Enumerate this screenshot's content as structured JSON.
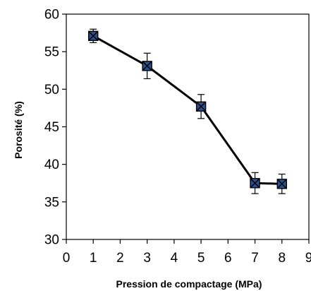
{
  "chart_data": {
    "type": "line",
    "title": "",
    "xlabel": "Pression de compactage (MPa)",
    "ylabel": "Porosité (%)",
    "xlim": [
      0,
      9
    ],
    "ylim": [
      30,
      60
    ],
    "x_ticks": [
      0,
      1,
      2,
      3,
      4,
      5,
      6,
      7,
      8,
      9
    ],
    "y_ticks": [
      30,
      35,
      40,
      45,
      50,
      55,
      60
    ],
    "grid": false,
    "legend": "none",
    "series": [
      {
        "x": [
          1,
          3,
          5,
          7,
          8
        ],
        "y": [
          57.1,
          53.1,
          47.7,
          37.5,
          37.4
        ],
        "error": [
          0.9,
          1.7,
          1.6,
          1.4,
          1.3
        ],
        "line_color": "#000000",
        "marker_fill": "#2f4f8c",
        "marker": "square-x"
      }
    ]
  }
}
